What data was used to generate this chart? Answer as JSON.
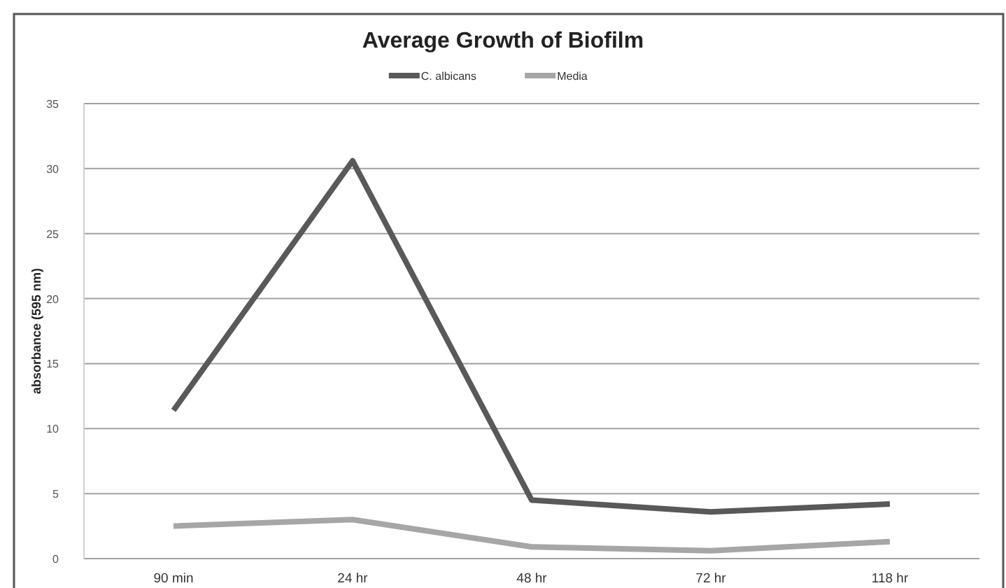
{
  "chart_data": {
    "type": "line",
    "title": "Average Growth of Biofilm",
    "ylabel": "absorbance (595 nm)",
    "categories": [
      "90 min",
      "24 hr",
      "48 hr",
      "72 hr",
      "118 hr"
    ],
    "series": [
      {
        "name": "C. albicans",
        "color": "#595959",
        "values": [
          11.4,
          30.6,
          4.5,
          3.6,
          4.2
        ]
      },
      {
        "name": "Media",
        "color": "#a6a6a6",
        "values": [
          2.5,
          3.0,
          0.9,
          0.6,
          1.3
        ]
      }
    ],
    "ylim": [
      0,
      35
    ],
    "yticks": [
      0,
      5,
      10,
      15,
      20,
      25,
      30,
      35
    ],
    "grid": "y",
    "legend": "top",
    "marker": "none",
    "line_style": "solid"
  }
}
